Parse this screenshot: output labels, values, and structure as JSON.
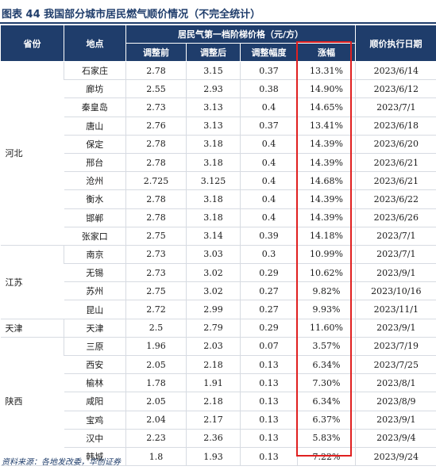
{
  "title": "图表 44   我国部分城市居民燃气顺价情况（不完全统计）",
  "headers": {
    "province": "省份",
    "city": "地点",
    "group": "居民气第一档阶梯价格（元/方）",
    "before": "调整前",
    "after": "调整后",
    "change": "调整幅度",
    "increase": "涨幅",
    "date": "顺价执行日期"
  },
  "provinces": [
    {
      "name": "河北",
      "rows": [
        [
          "石家庄",
          "2.78",
          "3.15",
          "0.37",
          "13.31%",
          "2023/6/14"
        ],
        [
          "廊坊",
          "2.55",
          "2.93",
          "0.38",
          "14.90%",
          "2023/6/12"
        ],
        [
          "秦皇岛",
          "2.73",
          "3.13",
          "0.4",
          "14.65%",
          "2023/7/1"
        ],
        [
          "唐山",
          "2.76",
          "3.13",
          "0.37",
          "13.41%",
          "2023/6/18"
        ],
        [
          "保定",
          "2.78",
          "3.18",
          "0.4",
          "14.39%",
          "2023/6/20"
        ],
        [
          "邢台",
          "2.78",
          "3.18",
          "0.4",
          "14.39%",
          "2023/6/21"
        ],
        [
          "沧州",
          "2.725",
          "3.125",
          "0.4",
          "14.68%",
          "2023/6/21"
        ],
        [
          "衡水",
          "2.78",
          "3.18",
          "0.4",
          "14.39%",
          "2023/6/22"
        ],
        [
          "邯郸",
          "2.78",
          "3.18",
          "0.4",
          "14.39%",
          "2023/6/26"
        ],
        [
          "张家口",
          "2.75",
          "3.14",
          "0.39",
          "14.18%",
          "2023/7/1"
        ]
      ]
    },
    {
      "name": "江苏",
      "rows": [
        [
          "南京",
          "2.73",
          "3.03",
          "0.3",
          "10.99%",
          "2023/7/1"
        ],
        [
          "无锡",
          "2.73",
          "3.02",
          "0.29",
          "10.62%",
          "2023/9/1"
        ],
        [
          "苏州",
          "2.75",
          "3.02",
          "0.27",
          "9.82%",
          "2023/10/16"
        ],
        [
          "昆山",
          "2.72",
          "2.99",
          "0.27",
          "9.93%",
          "2023/11/1"
        ]
      ]
    },
    {
      "name": "天津",
      "rows": [
        [
          "天津",
          "2.5",
          "2.79",
          "0.29",
          "11.60%",
          "2023/9/1"
        ]
      ]
    },
    {
      "name": "陕西",
      "rows": [
        [
          "三原",
          "1.96",
          "2.03",
          "0.07",
          "3.57%",
          "2023/7/19"
        ],
        [
          "西安",
          "2.05",
          "2.18",
          "0.13",
          "6.34%",
          "2023/7/25"
        ],
        [
          "榆林",
          "1.78",
          "1.91",
          "0.13",
          "7.30%",
          "2023/8/1"
        ],
        [
          "咸阳",
          "2.05",
          "2.18",
          "0.13",
          "6.34%",
          "2023/8/9"
        ],
        [
          "宝鸡",
          "2.04",
          "2.17",
          "0.13",
          "6.37%",
          "2023/9/1"
        ],
        [
          "汉中",
          "2.23",
          "2.36",
          "0.13",
          "5.83%",
          "2023/9/4"
        ],
        [
          "韩城",
          "1.8",
          "1.93",
          "0.13",
          "7.22%",
          "2023/9/24"
        ]
      ]
    }
  ],
  "footer": "资料来源：各地发改委，华创证券",
  "highlight_color": "#e02020",
  "header_color": "#1f3d6b"
}
